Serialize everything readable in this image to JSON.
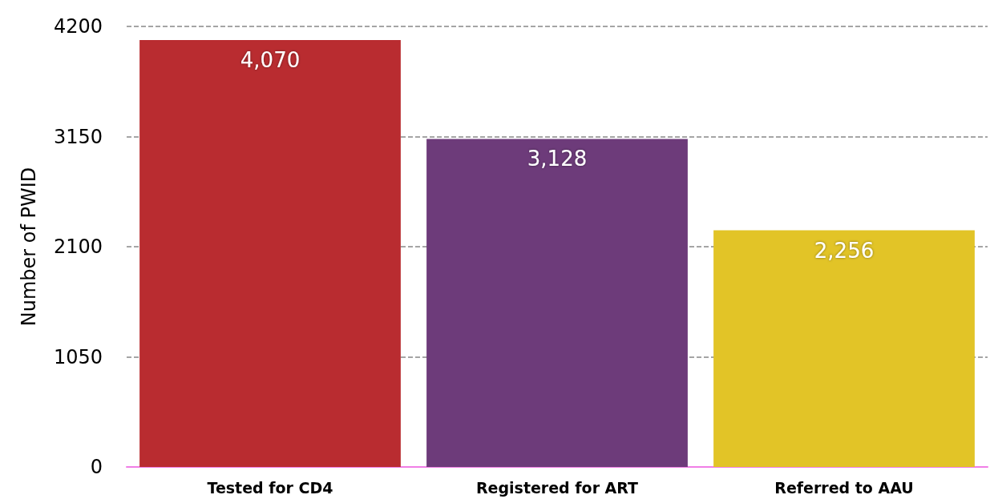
{
  "chart_data": {
    "type": "bar",
    "ylabel": "Number of PWID",
    "categories": [
      "Tested for CD4",
      "Registered for ART",
      "Referred to AAU"
    ],
    "values": [
      4070,
      3128,
      2256
    ],
    "value_labels": [
      "4,070",
      "3,128",
      "2,256"
    ],
    "colors": [
      "#b92c30",
      "#6d3b7a",
      "#e2c427"
    ],
    "ylim": [
      0,
      4200
    ],
    "yticks": [
      0,
      1050,
      2100,
      3150,
      4200
    ],
    "grid": "y"
  }
}
